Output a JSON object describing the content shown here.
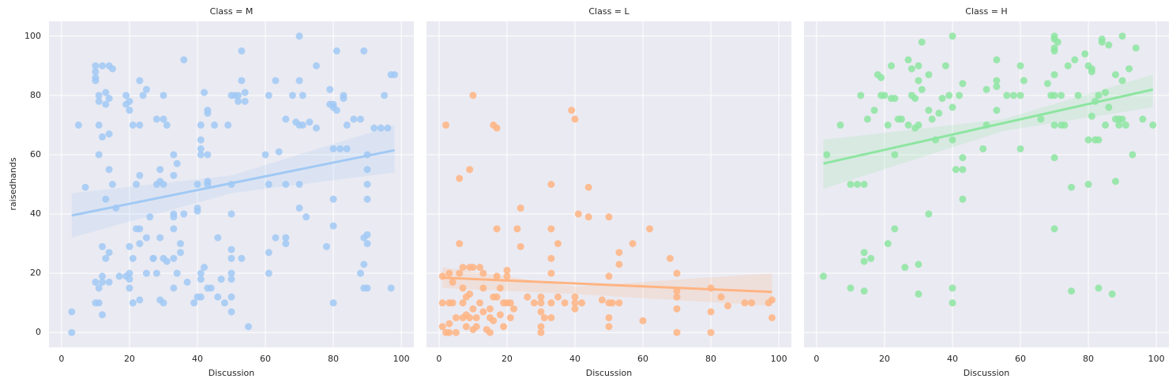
{
  "chart_data": [
    {
      "type": "scatter",
      "title": "Class = M",
      "x_label": "Discussion",
      "y_label": "raisedhands",
      "color": "#a1c9f4",
      "xlim": [
        -3.7,
        103.7
      ],
      "ylim": [
        -5,
        105
      ],
      "xticks": [
        0,
        20,
        40,
        60,
        80,
        100
      ],
      "yticks": [
        0,
        20,
        40,
        60,
        80,
        100
      ],
      "grid": true,
      "x": [
        3,
        3,
        5,
        7,
        10,
        10,
        10,
        10,
        12,
        14,
        15,
        11,
        11,
        13,
        14,
        13,
        11,
        12,
        14,
        11,
        13,
        14,
        15,
        12,
        14,
        13,
        10,
        12,
        14,
        12,
        11,
        10,
        11,
        12,
        17,
        16,
        19,
        20,
        19,
        20,
        21,
        23,
        23,
        25,
        24,
        23,
        22,
        22,
        23,
        20,
        23,
        21,
        20,
        19,
        20,
        20,
        21,
        23,
        25,
        25,
        26,
        27,
        28,
        30,
        30,
        29,
        28,
        29,
        30,
        31,
        30,
        31,
        28,
        27,
        29,
        29,
        30,
        33,
        33,
        34,
        33,
        33,
        33,
        33,
        34,
        35,
        35,
        36,
        36,
        37,
        33,
        39,
        40,
        40,
        40,
        41,
        41,
        41,
        41,
        40,
        43,
        43,
        43,
        43,
        43,
        42,
        42,
        41,
        41,
        41,
        44,
        43,
        45,
        46,
        47,
        46,
        48,
        49,
        50,
        51,
        50,
        50,
        50,
        50,
        50,
        50,
        50,
        50,
        52,
        52,
        53,
        53,
        54,
        54,
        53,
        55,
        60,
        61,
        61,
        61,
        61,
        63,
        64,
        63,
        66,
        66,
        66,
        66,
        68,
        69,
        70,
        70,
        70,
        71,
        70,
        70,
        71,
        72,
        73,
        75,
        75,
        78,
        79,
        79,
        80,
        80,
        80,
        80,
        80,
        80,
        81,
        81,
        82,
        83,
        83,
        84,
        84,
        86,
        88,
        88,
        89,
        89,
        90,
        90,
        90,
        90,
        90,
        90,
        89,
        89,
        92,
        94,
        95,
        96,
        97,
        98,
        97,
        90
      ],
      "values": [
        7,
        0,
        70,
        49,
        90,
        88,
        86,
        85,
        90,
        90,
        89,
        80,
        78,
        81,
        79,
        77,
        70,
        66,
        67,
        60,
        45,
        55,
        50,
        29,
        27,
        25,
        17,
        17,
        17,
        19,
        15,
        10,
        10,
        6,
        19,
        42,
        80,
        78,
        77,
        75,
        70,
        70,
        85,
        82,
        80,
        53,
        50,
        35,
        35,
        29,
        30,
        25,
        20,
        19,
        18,
        15,
        10,
        11,
        32,
        20,
        39,
        25,
        72,
        72,
        80,
        55,
        50,
        51,
        50,
        70,
        25,
        24,
        20,
        25,
        32,
        11,
        10,
        60,
        53,
        57,
        40,
        39,
        35,
        25,
        20,
        30,
        27,
        92,
        40,
        17,
        15,
        10,
        12,
        42,
        41,
        70,
        65,
        62,
        60,
        50,
        51,
        50,
        60,
        74,
        75,
        81,
        22,
        20,
        18,
        12,
        15,
        15,
        70,
        32,
        18,
        12,
        10,
        70,
        80,
        80,
        50,
        40,
        28,
        25,
        20,
        18,
        12,
        7,
        80,
        78,
        95,
        85,
        81,
        78,
        25,
        2,
        60,
        80,
        50,
        27,
        20,
        85,
        61,
        32,
        72,
        50,
        32,
        30,
        80,
        71,
        100,
        85,
        70,
        70,
        50,
        42,
        80,
        39,
        71,
        90,
        69,
        29,
        82,
        77,
        77,
        76,
        62,
        45,
        36,
        10,
        95,
        75,
        62,
        80,
        79,
        70,
        62,
        72,
        72,
        20,
        95,
        32,
        60,
        55,
        50,
        45,
        33,
        30,
        23,
        15,
        69,
        69,
        80,
        69,
        87,
        87,
        15,
        15
      ],
      "fit": {
        "x": [
          3,
          98
        ],
        "y": [
          39.5,
          61.5
        ]
      },
      "ci": {
        "x": [
          3,
          50,
          98
        ],
        "lower": [
          32,
          47,
          54
        ],
        "upper": [
          47,
          53,
          70
        ]
      }
    },
    {
      "type": "scatter",
      "title": "Class = L",
      "x_label": "Discussion",
      "color": "#ffb482",
      "xlim": [
        -3.7,
        103.7
      ],
      "ylim": [
        -5,
        105
      ],
      "xticks": [
        0,
        20,
        40,
        60,
        80,
        100
      ],
      "x": [
        2,
        1,
        1,
        1,
        2,
        3,
        3,
        3,
        3,
        4,
        4,
        5,
        5,
        6,
        6,
        6,
        7,
        7,
        7,
        7,
        8,
        8,
        8,
        9,
        9,
        9,
        9,
        10,
        10,
        10,
        10,
        11,
        11,
        12,
        12,
        13,
        13,
        13,
        14,
        15,
        15,
        16,
        16,
        16,
        15,
        17,
        17,
        17,
        17,
        18,
        18,
        19,
        19,
        20,
        20,
        20,
        21,
        21,
        22,
        23,
        24,
        24,
        26,
        28,
        30,
        30,
        30,
        30,
        30,
        31,
        33,
        33,
        33,
        33,
        33,
        33,
        35,
        35,
        37,
        39,
        40,
        40,
        40,
        40,
        41,
        42,
        44,
        44,
        48,
        50,
        50,
        50,
        50,
        50,
        51,
        53,
        53,
        53,
        57,
        60,
        62,
        68,
        70,
        70,
        70,
        70,
        70,
        80,
        80,
        80,
        83,
        85,
        90,
        92,
        97,
        98,
        98
      ],
      "values": [
        70,
        19,
        10,
        2,
        0,
        20,
        10,
        3,
        0,
        17,
        10,
        0,
        5,
        30,
        52,
        20,
        22,
        15,
        10,
        5,
        12,
        6,
        2,
        55,
        22,
        13,
        5,
        80,
        22,
        8,
        1,
        5,
        2,
        22,
        10,
        15,
        20,
        7,
        1,
        8,
        5,
        70,
        12,
        4,
        0,
        69,
        35,
        19,
        12,
        15,
        6,
        10,
        2,
        21,
        19,
        10,
        10,
        5,
        8,
        35,
        42,
        29,
        12,
        10,
        12,
        10,
        7,
        2,
        0,
        5,
        50,
        35,
        25,
        20,
        10,
        5,
        30,
        12,
        10,
        75,
        72,
        12,
        10,
        8,
        40,
        10,
        49,
        39,
        11,
        39,
        19,
        10,
        5,
        2,
        10,
        27,
        23,
        10,
        30,
        4,
        35,
        25,
        20,
        14,
        12,
        8,
        0,
        15,
        7,
        0,
        12,
        9,
        10,
        10,
        10,
        11,
        5
      ],
      "fit": {
        "x": [
          1,
          98
        ],
        "y": [
          18.5,
          13.7
        ]
      },
      "ci": {
        "x": [
          1,
          40,
          98
        ],
        "lower": [
          15,
          13,
          9
        ],
        "upper": [
          22,
          15.5,
          20
        ]
      }
    },
    {
      "type": "scatter",
      "title": "Class = H",
      "x_label": "Discussion",
      "color": "#8de5a1",
      "xlim": [
        -3.7,
        103.7
      ],
      "ylim": [
        -5,
        105
      ],
      "xticks": [
        0,
        20,
        40,
        60,
        80,
        100
      ],
      "x": [
        2,
        3,
        7,
        10,
        12,
        13,
        14,
        14,
        14,
        14,
        10,
        15,
        16,
        17,
        18,
        19,
        19,
        20,
        21,
        21,
        22,
        22,
        23,
        23,
        23,
        24,
        25,
        26,
        27,
        27,
        28,
        28,
        29,
        29,
        30,
        30,
        30,
        30,
        30,
        31,
        31,
        33,
        33,
        33,
        34,
        35,
        36,
        37,
        38,
        39,
        40,
        40,
        40,
        40,
        40,
        41,
        42,
        43,
        43,
        43,
        43,
        49,
        50,
        50,
        53,
        53,
        53,
        53,
        56,
        58,
        60,
        60,
        60,
        61,
        66,
        68,
        69,
        70,
        70,
        70,
        70,
        70,
        70,
        70,
        70,
        70,
        71,
        72,
        72,
        73,
        74,
        75,
        75,
        76,
        77,
        79,
        80,
        80,
        80,
        81,
        81,
        81,
        82,
        82,
        83,
        83,
        83,
        84,
        84,
        85,
        85,
        86,
        86,
        87,
        88,
        88,
        88,
        89,
        89,
        90,
        90,
        90,
        91,
        92,
        93,
        94,
        96,
        99
      ],
      "values": [
        19,
        60,
        70,
        50,
        50,
        80,
        50,
        27,
        24,
        14,
        15,
        72,
        25,
        75,
        87,
        86,
        80,
        80,
        70,
        30,
        90,
        79,
        35,
        60,
        79,
        72,
        72,
        22,
        70,
        92,
        80,
        89,
        79,
        69,
        85,
        90,
        70,
        23,
        13,
        82,
        98,
        87,
        75,
        40,
        72,
        65,
        74,
        79,
        90,
        80,
        100,
        76,
        65,
        15,
        10,
        55,
        80,
        84,
        59,
        55,
        45,
        62,
        82,
        70,
        92,
        85,
        83,
        75,
        80,
        80,
        90,
        80,
        62,
        85,
        72,
        84,
        80,
        100,
        99,
        96,
        95,
        87,
        80,
        70,
        59,
        35,
        98,
        80,
        70,
        70,
        90,
        49,
        14,
        92,
        80,
        94,
        90,
        65,
        50,
        88,
        89,
        73,
        65,
        78,
        65,
        80,
        15,
        99,
        98,
        81,
        70,
        97,
        76,
        13,
        87,
        72,
        51,
        72,
        70,
        100,
        85,
        72,
        70,
        89,
        60,
        96,
        72,
        70
      ],
      "fit": {
        "x": [
          2,
          99
        ],
        "y": [
          57,
          82
        ]
      },
      "ci": {
        "x": [
          2,
          55,
          99
        ],
        "lower": [
          48.5,
          68,
          76
        ],
        "upper": [
          65,
          72,
          87
        ]
      }
    }
  ]
}
